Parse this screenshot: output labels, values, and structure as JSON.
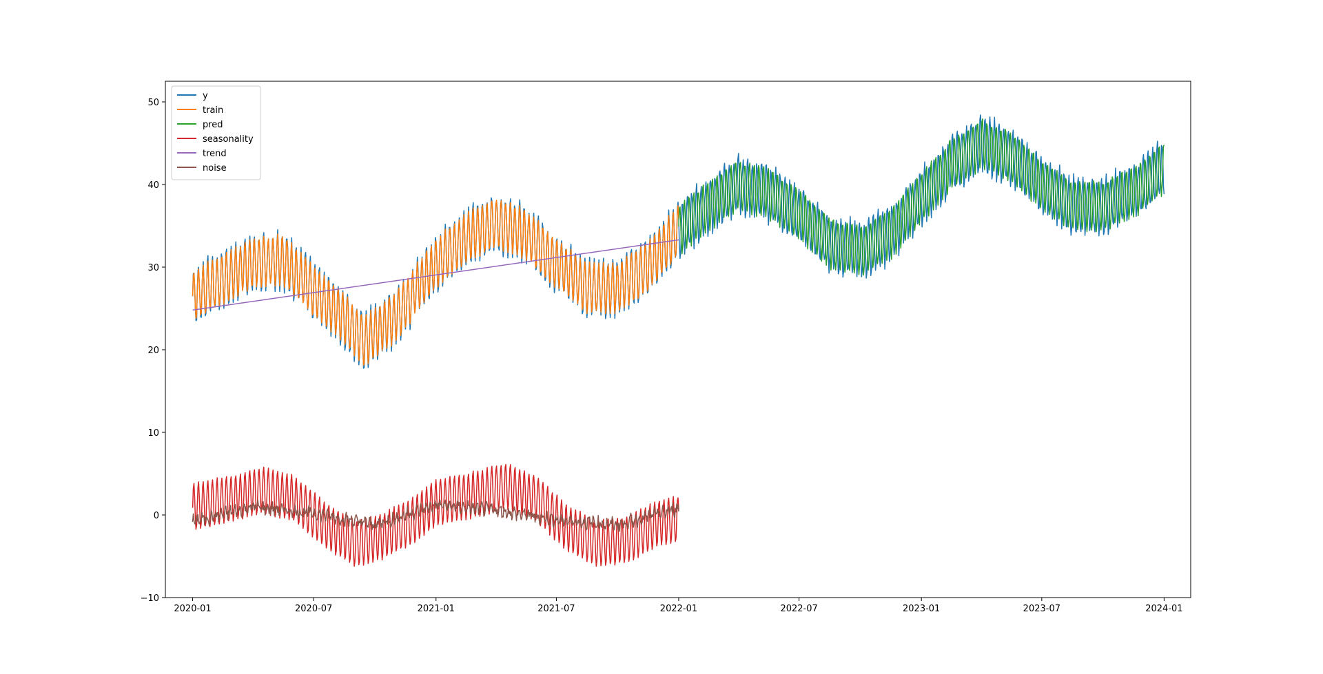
{
  "chart_data": {
    "type": "line",
    "title": "",
    "xlabel": "",
    "ylabel": "",
    "xlim": [
      "2019-11-21",
      "2024-02-10"
    ],
    "ylim": [
      -10,
      52.5
    ],
    "grid": false,
    "legend_position": "top-left",
    "x_ticks": [
      {
        "date": "2020-01-01",
        "label": "2020-01"
      },
      {
        "date": "2020-07-01",
        "label": "2020-07"
      },
      {
        "date": "2021-01-01",
        "label": "2021-01"
      },
      {
        "date": "2021-07-01",
        "label": "2021-07"
      },
      {
        "date": "2022-01-01",
        "label": "2022-01"
      },
      {
        "date": "2022-07-01",
        "label": "2022-07"
      },
      {
        "date": "2023-01-01",
        "label": "2023-01"
      },
      {
        "date": "2023-07-01",
        "label": "2023-07"
      },
      {
        "date": "2024-01-01",
        "label": "2024-01"
      }
    ],
    "y_ticks": [
      {
        "value": -10,
        "label": "−10"
      },
      {
        "value": 0,
        "label": "0"
      },
      {
        "value": 10,
        "label": "10"
      },
      {
        "value": 20,
        "label": "20"
      },
      {
        "value": 30,
        "label": "30"
      },
      {
        "value": 40,
        "label": "40"
      },
      {
        "value": 50,
        "label": "50"
      }
    ],
    "series": [
      {
        "name": "y",
        "color": "#1f77b4",
        "start": "2020-01-01",
        "end": "2024-01-01"
      },
      {
        "name": "train",
        "color": "#ff7f0e",
        "start": "2020-01-01",
        "end": "2022-01-01"
      },
      {
        "name": "pred",
        "color": "#2ca02c",
        "start": "2022-01-01",
        "end": "2024-01-01"
      },
      {
        "name": "seasonality",
        "color": "#d62728",
        "start": "2020-01-01",
        "end": "2022-01-01"
      },
      {
        "name": "trend",
        "color": "#9467bd",
        "start": "2020-01-01",
        "end": "2022-01-01",
        "values": [
          24.8,
          33.3
        ]
      },
      {
        "name": "noise",
        "color": "#8c564b",
        "start": "2020-01-01",
        "end": "2022-01-01"
      }
    ],
    "envelope": {
      "dates": [
        "2020-01-01",
        "2020-02-15",
        "2020-04-01",
        "2020-05-15",
        "2020-07-01",
        "2020-08-15",
        "2020-09-15",
        "2020-11-01",
        "2021-01-01",
        "2021-02-15",
        "2021-04-01",
        "2021-05-15",
        "2021-07-01",
        "2021-08-15",
        "2021-10-01",
        "2021-11-15",
        "2022-01-01",
        "2022-02-15",
        "2022-04-01",
        "2022-05-15",
        "2022-07-01",
        "2022-08-15",
        "2022-10-01",
        "2022-11-15",
        "2023-01-01",
        "2023-02-15",
        "2023-04-01",
        "2023-05-15",
        "2023-07-01",
        "2023-08-15",
        "2023-10-01",
        "2023-11-15",
        "2024-01-01"
      ],
      "baseline": [
        26.5,
        28.5,
        30.5,
        31,
        27,
        24,
        21,
        24,
        30.5,
        33.5,
        35.5,
        34,
        30.5,
        27.5,
        27.5,
        30,
        34.5,
        37.5,
        40,
        39,
        36.5,
        33,
        32,
        34,
        38.5,
        42.5,
        45,
        43.5,
        40,
        37.5,
        37.5,
        39,
        42
      ]
    },
    "seasonality_envelope": {
      "dates": [
        "2020-01-01",
        "2020-03-01",
        "2020-04-15",
        "2020-06-01",
        "2020-07-15",
        "2020-09-01",
        "2020-10-15",
        "2020-12-01",
        "2021-01-01",
        "2021-03-01",
        "2021-04-15",
        "2021-06-01",
        "2021-07-15",
        "2021-09-01",
        "2021-10-15",
        "2021-12-01",
        "2022-01-01"
      ],
      "baseline": [
        1.0,
        2.0,
        3.0,
        2.0,
        -1.0,
        -3.5,
        -2.5,
        -0.5,
        1.5,
        2.5,
        3.5,
        2.0,
        -1.5,
        -3.5,
        -3.0,
        -1.0,
        -0.5
      ]
    },
    "noise_envelope": {
      "dates": [
        "2020-01-01",
        "2020-04-01",
        "2020-07-01",
        "2020-10-01",
        "2021-01-01",
        "2021-04-01",
        "2021-07-01",
        "2021-10-01",
        "2022-01-01"
      ],
      "baseline": [
        -0.8,
        1.0,
        0.2,
        -1.2,
        1.2,
        0.6,
        -0.6,
        -1.2,
        0.8
      ]
    },
    "cycle_amplitude": 3.0,
    "cycle_period_days": 7
  }
}
